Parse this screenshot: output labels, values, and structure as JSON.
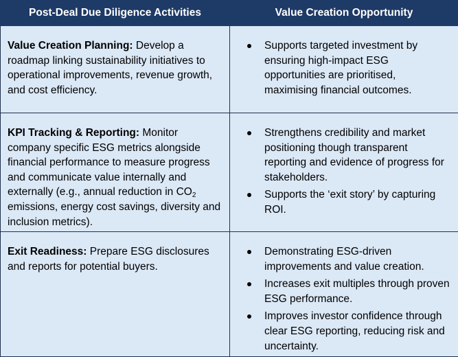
{
  "header": {
    "col1": "Post-Deal Due Diligence Activities",
    "col2": "Value Creation Opportunity"
  },
  "rows": [
    {
      "term": "Value Creation Planning:",
      "description": "Develop a roadmap linking sustainability initiatives to operational improvements, revenue growth, and cost efficiency.",
      "bullets": [
        "Supports targeted investment by ensuring high-impact ESG opportunities are prioritised, maximising financial outcomes."
      ]
    },
    {
      "term": "KPI Tracking & Reporting:",
      "description_before": "Monitor company specific ESG metrics alongside financial performance to measure progress and communicate value internally and externally (e.g., annual reduction in CO",
      "subscript": "2",
      "description_after": "emissions, energy cost savings, diversity and inclusion metrics).",
      "bullets": [
        "Strengthens credibility and market positioning though transparent reporting and evidence of progress for stakeholders.",
        "Supports the ‘exit story’ by capturing ROI."
      ]
    },
    {
      "term": "Exit Readiness:",
      "description": "Prepare ESG disclosures and reports for potential buyers.",
      "bullets": [
        "Demonstrating ESG-driven improvements and value creation.",
        "Increases exit multiples through proven ESG performance.",
        "Improves investor confidence through clear ESG reporting, reducing risk and uncertainty."
      ]
    }
  ]
}
